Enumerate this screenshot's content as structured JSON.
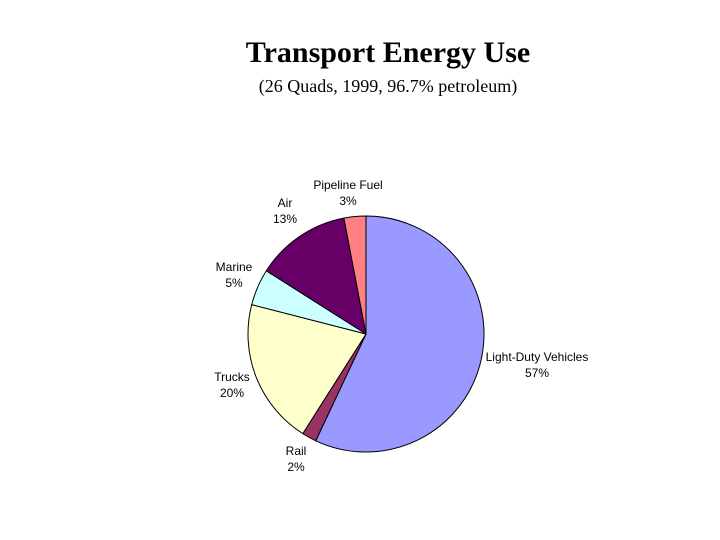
{
  "title": "Transport Energy Use",
  "subtitle": "(26 Quads, 1999, 96.7% petroleum)",
  "chart_data": {
    "type": "pie",
    "title": "Transport Energy Use",
    "subtitle": "(26 Quads, 1999, 96.7% petroleum)",
    "slices": [
      {
        "label": "Light-Duty Vehicles",
        "percent_label": "57%",
        "value": 57,
        "color": "#9999ff"
      },
      {
        "label": "Rail",
        "percent_label": "2%",
        "value": 2,
        "color": "#993366"
      },
      {
        "label": "Trucks",
        "percent_label": "20%",
        "value": 20,
        "color": "#ffffcc"
      },
      {
        "label": "Marine",
        "percent_label": "5%",
        "value": 5,
        "color": "#ccffff"
      },
      {
        "label": "Air",
        "percent_label": "13%",
        "value": 13,
        "color": "#660066"
      },
      {
        "label": "Pipeline Fuel",
        "percent_label": "3%",
        "value": 3,
        "color": "#ff8080"
      }
    ],
    "start": "12 o'clock",
    "direction": "clockwise",
    "legend": "none"
  }
}
